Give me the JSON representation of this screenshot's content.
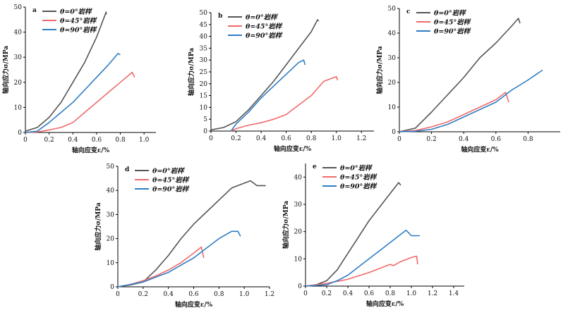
{
  "chart_data": [
    {
      "panel": "a",
      "type": "line",
      "xlabel": "轴向应变ε/%",
      "ylabel": "轴向应力σ/MPa",
      "xlim": [
        0,
        1.1
      ],
      "ylim": [
        0,
        50
      ],
      "xticks": [
        0,
        0.2,
        0.4,
        0.6,
        0.8,
        1.0
      ],
      "xtick_labels": [
        "0",
        "0.2",
        "0.4",
        "0.6",
        "0.8",
        "1.0"
      ],
      "yticks": [
        0,
        10,
        20,
        30,
        40,
        50
      ],
      "ytick_labels": [
        "0",
        "10",
        "20",
        "30",
        "40",
        "50"
      ],
      "series": [
        {
          "name": "θ=0°岩样",
          "color": "#555555",
          "points": [
            [
              0,
              0.5
            ],
            [
              0.1,
              2
            ],
            [
              0.2,
              6
            ],
            [
              0.3,
              12
            ],
            [
              0.4,
              20
            ],
            [
              0.5,
              28
            ],
            [
              0.6,
              38
            ],
            [
              0.68,
              48
            ],
            [
              0.68,
              47
            ]
          ]
        },
        {
          "name": "θ=45°岩样",
          "color": "#f06a6a",
          "points": [
            [
              0,
              0
            ],
            [
              0.1,
              0.2
            ],
            [
              0.2,
              1
            ],
            [
              0.3,
              2
            ],
            [
              0.4,
              4
            ],
            [
              0.5,
              8
            ],
            [
              0.6,
              12
            ],
            [
              0.7,
              16
            ],
            [
              0.8,
              20
            ],
            [
              0.9,
              24
            ],
            [
              0.92,
              22
            ]
          ]
        },
        {
          "name": "θ=90°岩样",
          "color": "#2e7dc4",
          "points": [
            [
              0,
              0
            ],
            [
              0.1,
              0.5
            ],
            [
              0.2,
              4
            ],
            [
              0.3,
              8
            ],
            [
              0.4,
              12
            ],
            [
              0.5,
              17
            ],
            [
              0.6,
              22
            ],
            [
              0.7,
              27
            ],
            [
              0.78,
              31.5
            ],
            [
              0.8,
              31
            ]
          ]
        }
      ]
    },
    {
      "panel": "b",
      "type": "line",
      "xlabel": "轴向应变ε/%",
      "ylabel": "轴向应力σ/MPa",
      "xlim": [
        0,
        1.3
      ],
      "ylim": [
        0,
        50
      ],
      "xticks": [
        0,
        0.2,
        0.4,
        0.6,
        0.8,
        1.0,
        1.2
      ],
      "xtick_labels": [
        "0",
        "0.2",
        "0.4",
        "0.6",
        "0.8",
        "1.0",
        "1.2"
      ],
      "yticks": [
        0,
        5,
        10,
        15,
        20,
        25,
        30,
        35,
        40,
        45,
        50
      ],
      "ytick_labels": [
        "0",
        "5",
        "10",
        "15",
        "20",
        "25",
        "30",
        "35",
        "40",
        "45",
        "50"
      ],
      "series": [
        {
          "name": "θ=0°岩样",
          "color": "#555555",
          "points": [
            [
              0,
              0.5
            ],
            [
              0.1,
              1.5
            ],
            [
              0.2,
              4
            ],
            [
              0.3,
              9
            ],
            [
              0.4,
              15
            ],
            [
              0.5,
              21
            ],
            [
              0.6,
              28
            ],
            [
              0.7,
              35
            ],
            [
              0.8,
              42
            ],
            [
              0.85,
              47
            ],
            [
              0.86,
              46.5
            ]
          ]
        },
        {
          "name": "θ=45°岩样",
          "color": "#f06a6a",
          "points": [
            [
              0.16,
              0
            ],
            [
              0.2,
              1
            ],
            [
              0.3,
              2.5
            ],
            [
              0.4,
              3.5
            ],
            [
              0.5,
              5
            ],
            [
              0.6,
              7
            ],
            [
              0.7,
              11
            ],
            [
              0.8,
              15
            ],
            [
              0.9,
              21
            ],
            [
              1.0,
              23
            ],
            [
              1.01,
              21.5
            ]
          ]
        },
        {
          "name": "θ=90°岩样",
          "color": "#2e7dc4",
          "points": [
            [
              0.16,
              0
            ],
            [
              0.2,
              3
            ],
            [
              0.3,
              8
            ],
            [
              0.4,
              14
            ],
            [
              0.5,
              19
            ],
            [
              0.6,
              24
            ],
            [
              0.7,
              29
            ],
            [
              0.74,
              30
            ],
            [
              0.75,
              28
            ]
          ]
        }
      ]
    },
    {
      "panel": "c",
      "type": "line",
      "xlabel": "轴向应变ε/%",
      "ylabel": "轴向应力σ/MPa",
      "xlim": [
        0,
        1.0
      ],
      "ylim": [
        0,
        50
      ],
      "xticks": [
        0,
        0.2,
        0.4,
        0.6,
        0.8
      ],
      "xtick_labels": [
        "0",
        "0.2",
        "0.4",
        "0.6",
        "0.8"
      ],
      "yticks": [
        0,
        10,
        20,
        30,
        40,
        50
      ],
      "ytick_labels": [
        "0",
        "10",
        "20",
        "30",
        "40",
        "50"
      ],
      "series": [
        {
          "name": "θ=0°岩样",
          "color": "#555555",
          "points": [
            [
              0,
              0
            ],
            [
              0.1,
              1.5
            ],
            [
              0.2,
              8
            ],
            [
              0.3,
              15
            ],
            [
              0.4,
              22
            ],
            [
              0.5,
              30
            ],
            [
              0.6,
              36
            ],
            [
              0.7,
              43
            ],
            [
              0.74,
              46
            ],
            [
              0.75,
              44
            ]
          ]
        },
        {
          "name": "θ=45°岩样",
          "color": "#f06a6a",
          "points": [
            [
              0,
              0
            ],
            [
              0.1,
              0.5
            ],
            [
              0.2,
              2
            ],
            [
              0.3,
              4
            ],
            [
              0.4,
              7
            ],
            [
              0.5,
              10
            ],
            [
              0.6,
              13
            ],
            [
              0.66,
              16
            ],
            [
              0.68,
              12
            ]
          ]
        },
        {
          "name": "θ=90°岩样",
          "color": "#2e7dc4",
          "points": [
            [
              0,
              0
            ],
            [
              0.1,
              0.2
            ],
            [
              0.2,
              1
            ],
            [
              0.3,
              3
            ],
            [
              0.4,
              6
            ],
            [
              0.5,
              9
            ],
            [
              0.6,
              12
            ],
            [
              0.7,
              17
            ],
            [
              0.8,
              21
            ],
            [
              0.89,
              25
            ]
          ]
        }
      ]
    },
    {
      "panel": "d",
      "type": "line",
      "xlabel": "轴向应变ε/%",
      "ylabel": "轴向应力σ/MPa",
      "xlim": [
        0,
        1.2
      ],
      "ylim": [
        0,
        50
      ],
      "xticks": [
        0,
        0.2,
        0.4,
        0.6,
        0.8,
        1.0,
        1.2
      ],
      "xtick_labels": [
        "0",
        "0.2",
        "0.4",
        "0.6",
        "0.8",
        "1.0",
        "1.2"
      ],
      "yticks": [
        0,
        10,
        20,
        30,
        40,
        50
      ],
      "ytick_labels": [
        "0",
        "10",
        "20",
        "30",
        "40",
        "50"
      ],
      "series": [
        {
          "name": "θ=0°岩样",
          "color": "#555555",
          "points": [
            [
              0,
              0
            ],
            [
              0.1,
              0.8
            ],
            [
              0.2,
              2
            ],
            [
              0.3,
              7
            ],
            [
              0.4,
              13
            ],
            [
              0.5,
              20
            ],
            [
              0.6,
              26
            ],
            [
              0.7,
              31
            ],
            [
              0.8,
              36
            ],
            [
              0.9,
              41
            ],
            [
              1.0,
              43
            ],
            [
              1.05,
              44
            ],
            [
              1.1,
              42
            ],
            [
              1.17,
              42
            ]
          ]
        },
        {
          "name": "θ=45°岩样",
          "color": "#f06a6a",
          "points": [
            [
              0,
              0
            ],
            [
              0.1,
              1
            ],
            [
              0.2,
              2.5
            ],
            [
              0.3,
              4.5
            ],
            [
              0.4,
              7
            ],
            [
              0.5,
              10
            ],
            [
              0.6,
              14
            ],
            [
              0.66,
              16.5
            ],
            [
              0.68,
              12
            ]
          ]
        },
        {
          "name": "θ=90°岩样",
          "color": "#2e7dc4",
          "points": [
            [
              0,
              0
            ],
            [
              0.1,
              1
            ],
            [
              0.2,
              2
            ],
            [
              0.3,
              4
            ],
            [
              0.4,
              6
            ],
            [
              0.5,
              9
            ],
            [
              0.6,
              12
            ],
            [
              0.7,
              16
            ],
            [
              0.8,
              20
            ],
            [
              0.9,
              23
            ],
            [
              0.95,
              23
            ],
            [
              0.97,
              21
            ]
          ]
        }
      ]
    },
    {
      "panel": "e",
      "type": "line",
      "xlabel": "轴向应变ε/%",
      "ylabel": "轴向应力σ/MPa",
      "xlim": [
        0,
        1.5
      ],
      "ylim": [
        0,
        45
      ],
      "xticks": [
        0,
        0.2,
        0.4,
        0.6,
        0.8,
        1.0,
        1.2,
        1.4
      ],
      "xtick_labels": [
        "0",
        "0.2",
        "0.4",
        "0.6",
        "0.8",
        "1.0",
        "1.2",
        "1.4"
      ],
      "yticks": [
        0,
        10,
        20,
        30,
        40
      ],
      "ytick_labels": [
        "0",
        "10",
        "20",
        "30",
        "40"
      ],
      "series": [
        {
          "name": "θ=0°岩样",
          "color": "#555555",
          "points": [
            [
              0,
              0
            ],
            [
              0.1,
              0.5
            ],
            [
              0.2,
              2
            ],
            [
              0.3,
              6
            ],
            [
              0.4,
              12
            ],
            [
              0.5,
              18
            ],
            [
              0.6,
              24
            ],
            [
              0.7,
              29
            ],
            [
              0.8,
              34
            ],
            [
              0.88,
              38
            ],
            [
              0.9,
              37
            ]
          ]
        },
        {
          "name": "θ=45°岩样",
          "color": "#f06a6a",
          "points": [
            [
              0,
              0
            ],
            [
              0.2,
              1
            ],
            [
              0.4,
              2.5
            ],
            [
              0.6,
              5
            ],
            [
              0.8,
              8
            ],
            [
              0.83,
              7.5
            ],
            [
              0.9,
              9
            ],
            [
              1.0,
              10.5
            ],
            [
              1.05,
              11
            ],
            [
              1.06,
              8
            ]
          ]
        },
        {
          "name": "θ=90°岩样",
          "color": "#2e7dc4",
          "points": [
            [
              0,
              0
            ],
            [
              0.2,
              0.5
            ],
            [
              0.3,
              2
            ],
            [
              0.4,
              4
            ],
            [
              0.5,
              7
            ],
            [
              0.6,
              10
            ],
            [
              0.7,
              13
            ],
            [
              0.8,
              16
            ],
            [
              0.9,
              19
            ],
            [
              0.95,
              20.5
            ],
            [
              1.0,
              18.5
            ],
            [
              1.08,
              18.5
            ]
          ]
        }
      ]
    }
  ]
}
